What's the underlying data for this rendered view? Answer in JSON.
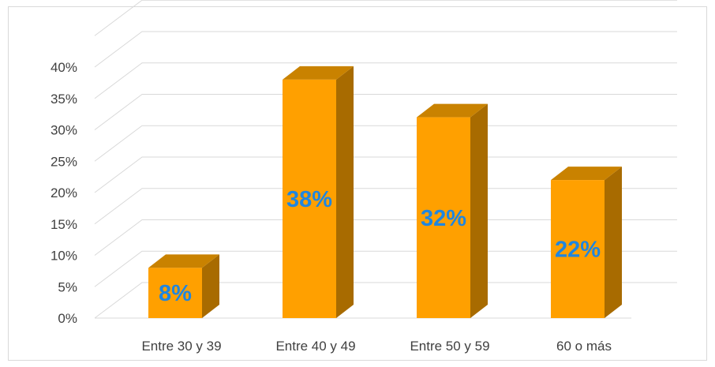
{
  "chart_data": {
    "type": "bar",
    "style": "3d-column",
    "categories": [
      "Entre 30 y 39",
      "Entre 40 y 49",
      "Entre 50 y 59",
      "60 o más"
    ],
    "values": [
      8,
      38,
      32,
      22
    ],
    "data_labels": [
      "8%",
      "38%",
      "32%",
      "22%"
    ],
    "y_ticks": [
      "0%",
      "5%",
      "10%",
      "15%",
      "20%",
      "25%",
      "30%",
      "35%",
      "40%"
    ],
    "ylim": [
      0,
      40
    ],
    "title": "",
    "xlabel": "",
    "ylabel": "",
    "grid": true,
    "legend": "none",
    "colors": {
      "bar_front": "#ffa000",
      "bar_top": "#c98200",
      "bar_side": "#a86b00",
      "data_label": "#1f86e0",
      "grid": "#d9d9d9",
      "axis_text": "#404040"
    }
  }
}
